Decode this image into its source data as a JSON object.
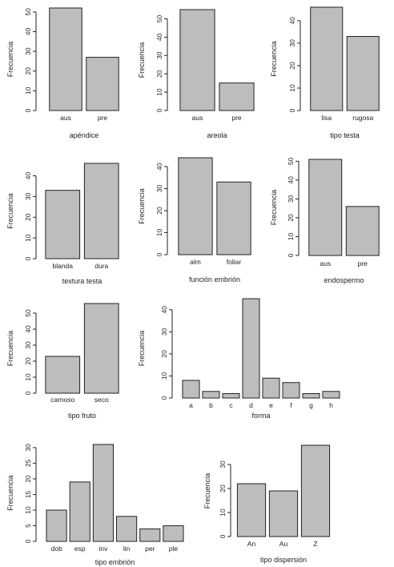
{
  "style": {
    "bar_fill": "#bdbdbd",
    "bar_stroke": "#222222",
    "axis_color": "#222222"
  },
  "chart_data": [
    {
      "type": "bar",
      "xlabel": "apéndice",
      "ylabel": "Frecuencia",
      "categories": [
        "aus",
        "pre"
      ],
      "values": [
        52,
        27
      ],
      "yticks": [
        0,
        10,
        20,
        30,
        40,
        50
      ],
      "ylim": [
        0,
        52
      ]
    },
    {
      "type": "bar",
      "xlabel": "areola",
      "ylabel": "Frecuencia",
      "categories": [
        "aus",
        "pre"
      ],
      "values": [
        55,
        15
      ],
      "yticks": [
        0,
        10,
        20,
        30,
        40,
        50
      ],
      "ylim": [
        0,
        55
      ]
    },
    {
      "type": "bar",
      "xlabel": "tipo testa",
      "ylabel": "Frecuencia",
      "categories": [
        "lisa",
        "rugosa"
      ],
      "values": [
        46,
        33
      ],
      "yticks": [
        0,
        10,
        20,
        30,
        40
      ],
      "ylim": [
        0,
        46
      ]
    },
    {
      "type": "bar",
      "xlabel": "textura testa",
      "ylabel": "Frecuencia",
      "categories": [
        "blanda",
        "dura"
      ],
      "values": [
        33,
        46
      ],
      "yticks": [
        0,
        10,
        20,
        30,
        40
      ],
      "ylim": [
        0,
        46
      ]
    },
    {
      "type": "bar",
      "xlabel": "función embrión",
      "ylabel": "Frecuencia",
      "categories": [
        "alm",
        "foliar"
      ],
      "values": [
        44,
        33
      ],
      "yticks": [
        0,
        10,
        20,
        30,
        40
      ],
      "ylim": [
        0,
        44
      ]
    },
    {
      "type": "bar",
      "xlabel": "endospermo",
      "ylabel": "Frecuencia",
      "categories": [
        "aus",
        "pre"
      ],
      "values": [
        51,
        26
      ],
      "yticks": [
        0,
        10,
        20,
        30,
        40,
        50
      ],
      "ylim": [
        0,
        51
      ]
    },
    {
      "type": "bar",
      "xlabel": "tipo fruto",
      "ylabel": "Frecuencia",
      "categories": [
        "carnoso",
        "seco"
      ],
      "values": [
        23,
        56
      ],
      "yticks": [
        0,
        10,
        20,
        30,
        40,
        50
      ],
      "ylim": [
        0,
        56
      ]
    },
    {
      "type": "bar",
      "xlabel": "forma",
      "ylabel": "Frecuencia",
      "categories": [
        "a",
        "b",
        "c",
        "d",
        "e",
        "f",
        "g",
        "h"
      ],
      "values": [
        8,
        3,
        2,
        45,
        9,
        7,
        2,
        3
      ],
      "yticks": [
        0,
        10,
        20,
        30,
        40
      ],
      "ylim": [
        0,
        45
      ]
    },
    {
      "type": "bar",
      "xlabel": "tipo embrión",
      "ylabel": "Frecuencia",
      "categories": [
        "dob",
        "esp",
        "inv",
        "lin",
        "per",
        "ple"
      ],
      "values": [
        10,
        19,
        31,
        8,
        4,
        5
      ],
      "yticks": [
        0,
        5,
        10,
        15,
        20,
        25,
        30
      ],
      "ylim": [
        0,
        31
      ]
    },
    {
      "type": "bar",
      "xlabel": "tipo dispersión",
      "ylabel": "Frecuencia",
      "categories": [
        "An",
        "Au",
        "Z"
      ],
      "values": [
        22,
        19,
        38
      ],
      "yticks": [
        0,
        10,
        20,
        30
      ],
      "ylim": [
        0,
        38
      ]
    }
  ]
}
